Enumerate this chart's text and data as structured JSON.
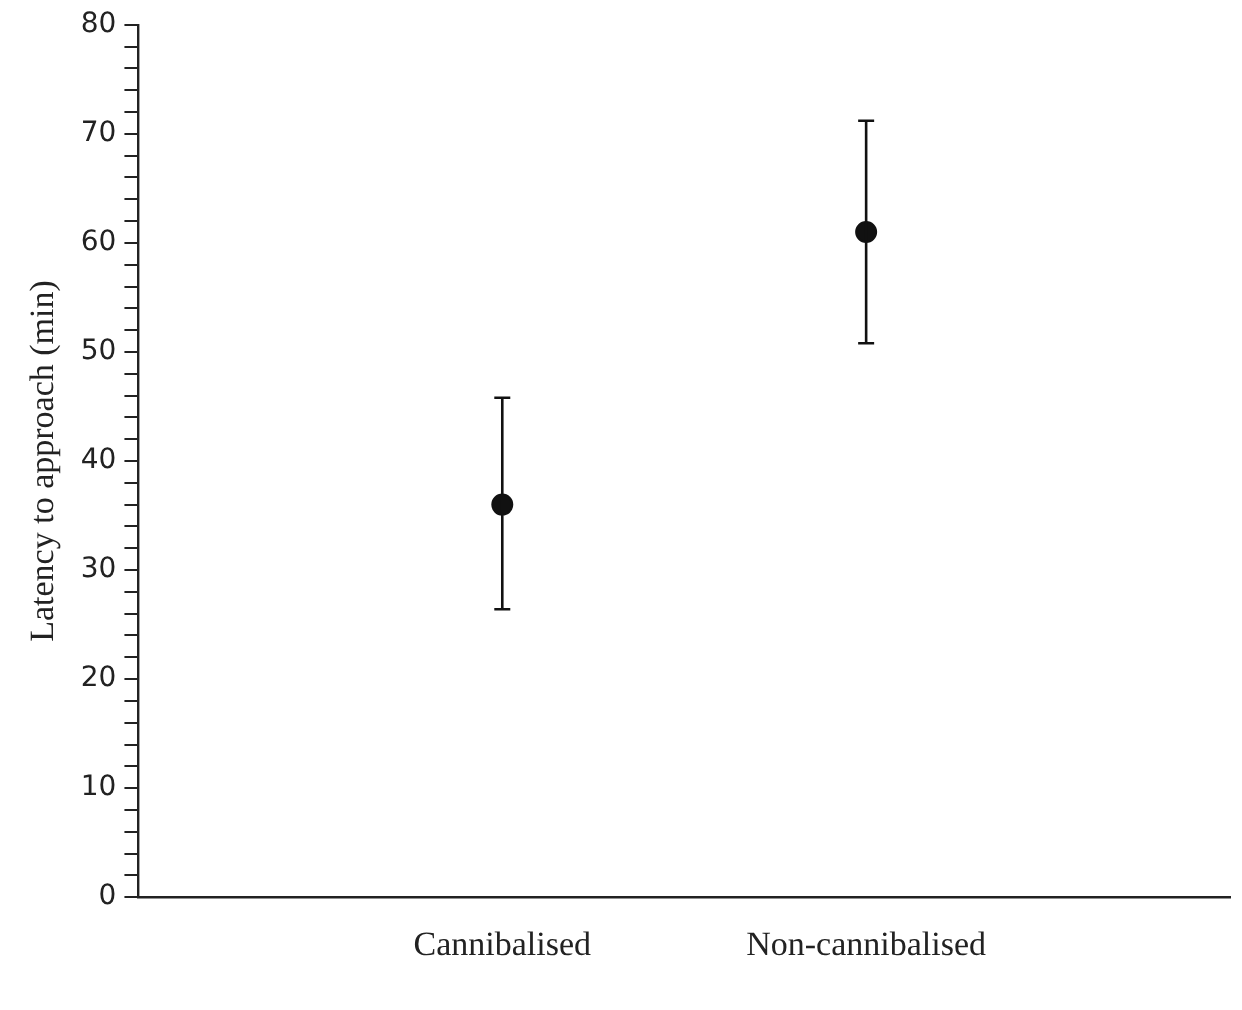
{
  "chart_data": {
    "type": "scatter",
    "ylabel": "Latency to approach (min)",
    "categories": [
      "Cannibalised",
      "Non-cannibalised"
    ],
    "values": [
      36,
      61
    ],
    "color": "#111111",
    "errors": [
      [
        26.4,
        45.8
      ],
      [
        50.8,
        71.2
      ]
    ],
    "marker": "circle",
    "ylim": [
      0,
      80
    ],
    "yticks": [
      0,
      {
        "value": 2,
        "label": null
      },
      {
        "value": 4,
        "label": null
      },
      {
        "value": 6,
        "label": null
      },
      {
        "value": 8,
        "label": null
      },
      10,
      {
        "value": 12,
        "label": null
      },
      {
        "value": 14,
        "label": null
      },
      {
        "value": 16,
        "label": null
      },
      {
        "value": 18,
        "label": null
      },
      20,
      {
        "value": 22,
        "label": null
      },
      {
        "value": 24,
        "label": null
      },
      {
        "value": 26,
        "label": null
      },
      {
        "value": 28,
        "label": null
      },
      30,
      {
        "value": 32,
        "label": null
      },
      {
        "value": 34,
        "label": null
      },
      {
        "value": 36,
        "label": null
      },
      {
        "value": 38,
        "label": null
      },
      40,
      {
        "value": 42,
        "label": null
      },
      {
        "value": 44,
        "label": null
      },
      {
        "value": 46,
        "label": null
      },
      {
        "value": 48,
        "label": null
      },
      50,
      {
        "value": 52,
        "label": null
      },
      {
        "value": 54,
        "label": null
      },
      {
        "value": 56,
        "label": null
      },
      {
        "value": 58,
        "label": null
      },
      60,
      {
        "value": 62,
        "label": null
      },
      {
        "value": 64,
        "label": null
      },
      {
        "value": 66,
        "label": null
      },
      {
        "value": 68,
        "label": null
      },
      70,
      {
        "value": 72,
        "label": null
      },
      {
        "value": 74,
        "label": null
      },
      {
        "value": 76,
        "label": null
      },
      {
        "value": 78,
        "label": null
      },
      80
    ],
    "grid": false,
    "legend": false
  }
}
